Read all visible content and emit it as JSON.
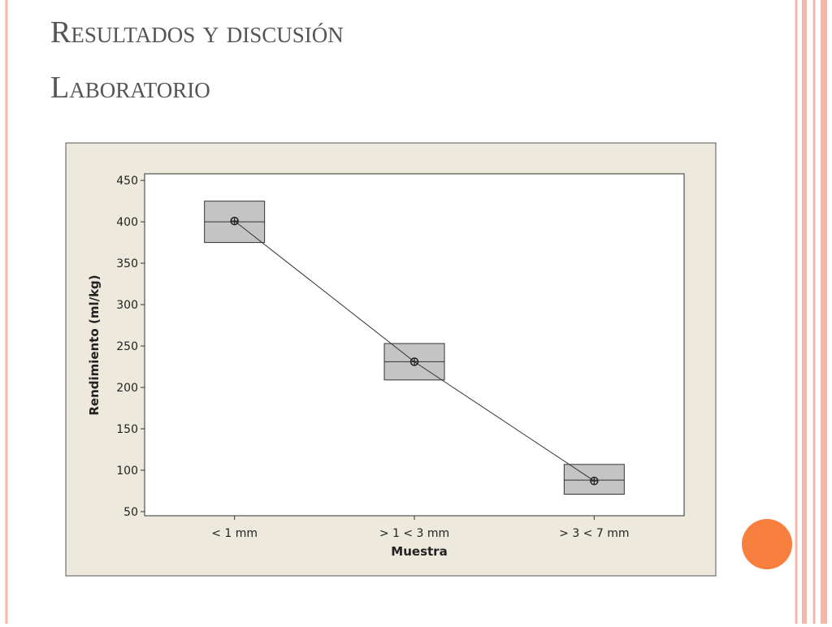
{
  "slide": {
    "title": "Resultados y discusión",
    "subtitle": "Laboratorio"
  },
  "chart_data": {
    "type": "box",
    "categories": [
      "< 1 mm",
      "> 1 < 3 mm",
      "> 3 < 7 mm"
    ],
    "q1": [
      375,
      209,
      71
    ],
    "median": [
      400,
      231,
      88
    ],
    "q3": [
      425,
      253,
      107
    ],
    "mean": [
      401,
      231,
      87
    ],
    "box_color": "#c4c4c4",
    "line_color": "#333333",
    "xlabel": "Muestra",
    "ylabel": "Rendimiento (ml/kg)",
    "ylim": [
      45,
      458
    ],
    "yticks": [
      50,
      100,
      150,
      200,
      250,
      300,
      350,
      400,
      450
    ]
  }
}
